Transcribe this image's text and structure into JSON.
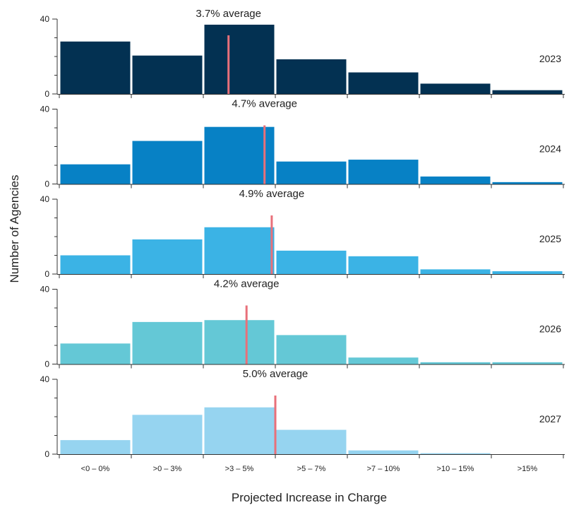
{
  "chart_data": {
    "type": "bar",
    "subtype": "small-multiples-histogram",
    "categories": [
      "<0 – 0%",
      ">0 – 3%",
      ">3 – 5%",
      ">5 – 7%",
      ">7 – 10%",
      ">10 – 15%",
      ">15%"
    ],
    "xlabel": "Projected Increase in Charge",
    "ylabel": "Number of Agencies",
    "ylim": [
      0,
      40
    ],
    "yticks": [
      "0",
      "40"
    ],
    "average_line_color": "#e8707a",
    "series": [
      {
        "name": "2023",
        "color": "#033152",
        "values": [
          28,
          20.5,
          37,
          18.5,
          11.5,
          5.5,
          2
        ],
        "average": 3.7,
        "average_label": "3.7% average"
      },
      {
        "name": "2024",
        "color": "#0781c5",
        "values": [
          10.5,
          23,
          30.5,
          12,
          13,
          4,
          1
        ],
        "average": 4.7,
        "average_label": "4.7% average"
      },
      {
        "name": "2025",
        "color": "#3bb3e5",
        "values": [
          10,
          18.5,
          25,
          12.5,
          9.5,
          2.5,
          1.5
        ],
        "average": 4.9,
        "average_label": "4.9% average"
      },
      {
        "name": "2026",
        "color": "#64c8d6",
        "values": [
          11,
          22.5,
          23.5,
          15.5,
          3.5,
          1,
          1
        ],
        "average": 4.2,
        "average_label": "4.2% average"
      },
      {
        "name": "2027",
        "color": "#96d4f0",
        "values": [
          7.5,
          21,
          25,
          13,
          2,
          0.5,
          0
        ],
        "average": 5.0,
        "average_label": "5.0% average"
      }
    ]
  }
}
